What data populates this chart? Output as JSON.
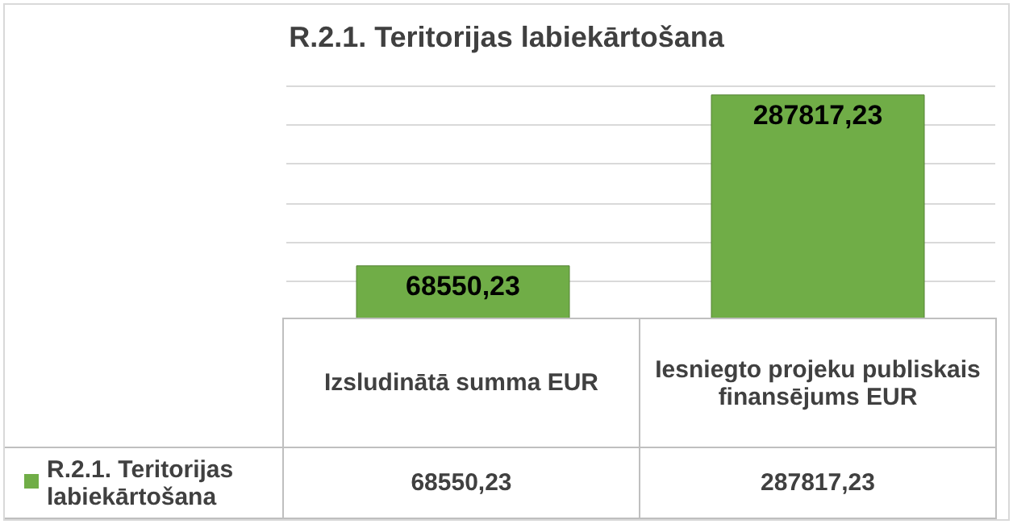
{
  "chart_data": {
    "type": "bar",
    "title": "R.2.1. Teritorijas labiekārtošana",
    "categories": [
      "Izsludinātā summa  EUR",
      "Iesniegto projeku publiskais finansējums EUR"
    ],
    "series": [
      {
        "name": "R.2.1. Teritorijas labiekārtošana",
        "color": "#70ad47",
        "values": [
          68550.23,
          287817.23
        ],
        "value_labels": [
          "68550,23",
          "287817,23"
        ]
      }
    ],
    "grid": "y",
    "legend": "bottom left"
  }
}
